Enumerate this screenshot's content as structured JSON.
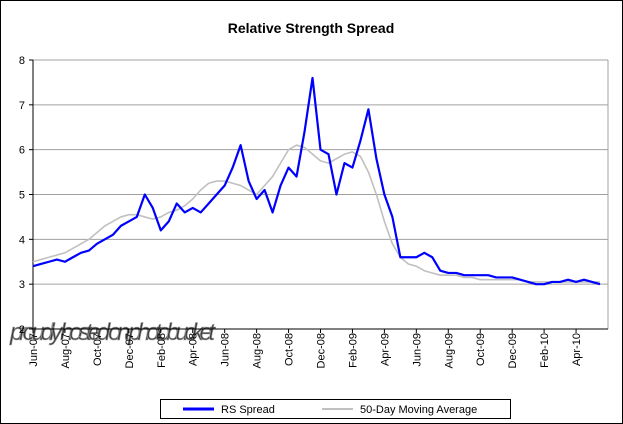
{
  "chart_data": {
    "type": "line",
    "title": "Relative Strength Spread",
    "categories": [
      "Jun-07",
      null,
      null,
      null,
      "Aug-07",
      null,
      null,
      null,
      "Oct-07",
      null,
      null,
      null,
      "Dec-07",
      null,
      null,
      null,
      "Feb-08",
      null,
      null,
      null,
      "Apr-08",
      null,
      null,
      null,
      "Jun-08",
      null,
      null,
      null,
      "Aug-08",
      null,
      null,
      null,
      "Oct-08",
      null,
      null,
      null,
      "Dec-08",
      null,
      null,
      null,
      "Feb-09",
      null,
      null,
      null,
      "Apr-09",
      null,
      null,
      null,
      "Jun-09",
      null,
      null,
      null,
      "Aug-09",
      null,
      null,
      null,
      "Oct-09",
      null,
      null,
      null,
      "Dec-09",
      null,
      null,
      null,
      "Feb-10",
      null,
      null,
      null,
      "Apr-10",
      null,
      null,
      null
    ],
    "series": [
      {
        "name": "RS Spread",
        "color": "#0000ff",
        "values": [
          3.4,
          3.45,
          3.5,
          3.55,
          3.5,
          3.6,
          3.7,
          3.75,
          3.9,
          4.0,
          4.1,
          4.3,
          4.4,
          4.5,
          5.0,
          4.7,
          4.2,
          4.4,
          4.8,
          4.6,
          4.7,
          4.6,
          4.8,
          5.0,
          5.2,
          5.6,
          6.1,
          5.3,
          4.9,
          5.1,
          4.6,
          5.2,
          5.6,
          5.4,
          6.4,
          7.6,
          6.0,
          5.9,
          5.0,
          5.7,
          5.6,
          6.2,
          6.9,
          5.8,
          5.0,
          4.5,
          3.6,
          3.6,
          3.6,
          3.7,
          3.6,
          3.3,
          3.25,
          3.25,
          3.2,
          3.2,
          3.2,
          3.2,
          3.15,
          3.15,
          3.15,
          3.1,
          3.05,
          3.0,
          3.0,
          3.05,
          3.05,
          3.1,
          3.05,
          3.1,
          3.05,
          3.0
        ]
      },
      {
        "name": "50-Day Moving Average",
        "color": "#c0c0c0",
        "values": [
          3.5,
          3.55,
          3.6,
          3.65,
          3.7,
          3.8,
          3.9,
          4.0,
          4.15,
          4.3,
          4.4,
          4.5,
          4.55,
          4.55,
          4.5,
          4.45,
          4.5,
          4.6,
          4.65,
          4.75,
          4.9,
          5.1,
          5.25,
          5.3,
          5.3,
          5.25,
          5.2,
          5.1,
          5.0,
          5.2,
          5.4,
          5.7,
          6.0,
          6.1,
          6.05,
          5.9,
          5.75,
          5.7,
          5.8,
          5.9,
          5.95,
          5.85,
          5.5,
          5.0,
          4.4,
          3.9,
          3.6,
          3.45,
          3.4,
          3.3,
          3.25,
          3.2,
          3.2,
          3.2,
          3.15,
          3.15,
          3.1,
          3.1,
          3.1,
          3.1,
          3.1,
          3.1,
          3.05,
          3.05,
          3.05,
          3.05,
          3.05,
          3.05,
          3.05,
          3.05,
          3.05,
          3.05
        ]
      }
    ],
    "ylim": [
      2,
      8
    ],
    "yticks": [
      2,
      3,
      4,
      5,
      6,
      7,
      8
    ],
    "grid": true,
    "legend": "bottom",
    "watermark": "proudly hosted on photobucket"
  }
}
